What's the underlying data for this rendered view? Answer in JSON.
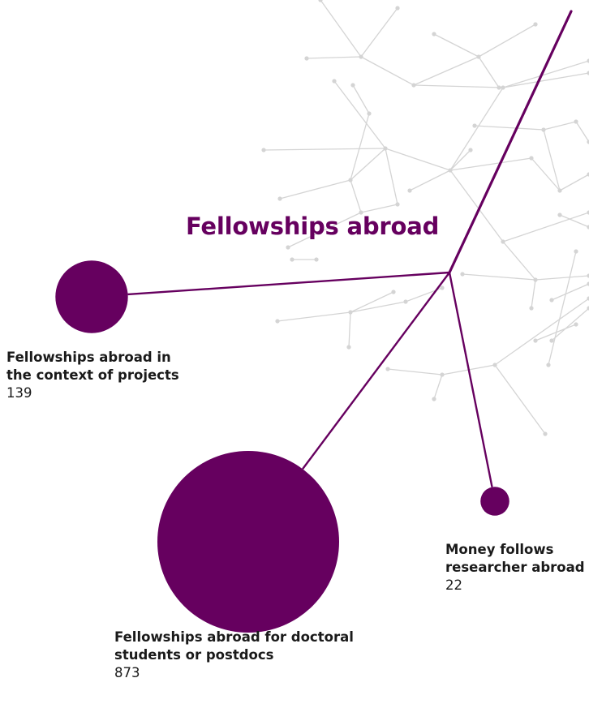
{
  "title": "Fellowships abroad",
  "colors": {
    "accent": "#66005f",
    "network": "#d4d4d4"
  },
  "nodes": [
    {
      "id": "projects",
      "name_line1": "Fellowships abroad in",
      "name_line2": "the context of projects",
      "value": 139
    },
    {
      "id": "money",
      "name_line1": "Money follows",
      "name_line2": "researcher abroad",
      "value": 22
    },
    {
      "id": "doctoral",
      "name_line1": "Fellowships abroad for doctoral",
      "name_line2": "students or postdocs",
      "value": 873
    }
  ],
  "labels": {
    "projects": {
      "line1": "Fellowships abroad in",
      "line2": "the context of projects",
      "value": "139"
    },
    "money": {
      "line1": "Money follows",
      "line2": "researcher abroad",
      "value": "22"
    },
    "doctoral": {
      "line1": "Fellowships abroad for doctoral",
      "line2": "students or postdocs",
      "value": "873"
    }
  }
}
